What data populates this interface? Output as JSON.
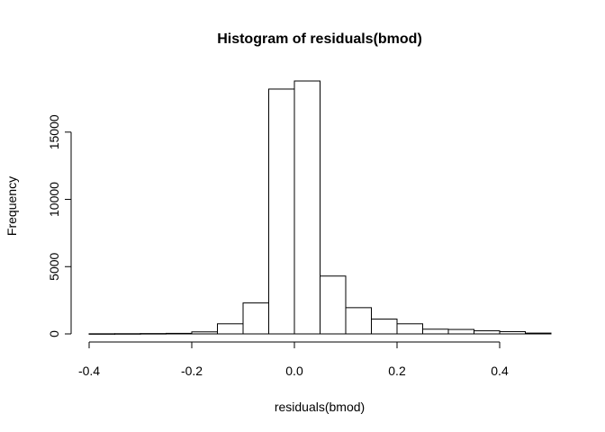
{
  "chart_data": {
    "type": "bar",
    "title": "Histogram of residuals(bmod)",
    "xlabel": "residuals(bmod)",
    "ylabel": "Frequency",
    "bin_edges": [
      -0.4,
      -0.35,
      -0.3,
      -0.25,
      -0.2,
      -0.15,
      -0.1,
      -0.05,
      0.0,
      0.05,
      0.1,
      0.15,
      0.2,
      0.25,
      0.3,
      0.35,
      0.4,
      0.45,
      0.5
    ],
    "values": [
      10,
      15,
      25,
      40,
      150,
      750,
      2300,
      18200,
      18800,
      4300,
      1950,
      1100,
      750,
      350,
      330,
      230,
      170,
      60
    ],
    "xlim": [
      -0.4,
      0.5
    ],
    "ylim": [
      0,
      18800
    ],
    "x_ticks": [
      -0.4,
      -0.2,
      0.0,
      0.2,
      0.4
    ],
    "x_tick_labels": [
      "-0.4",
      "-0.2",
      "0.0",
      "0.2",
      "0.4"
    ],
    "y_ticks": [
      0,
      5000,
      10000,
      15000
    ],
    "y_tick_labels": [
      "0",
      "5000",
      "10000",
      "15000"
    ],
    "grid": false,
    "legend": "none"
  }
}
